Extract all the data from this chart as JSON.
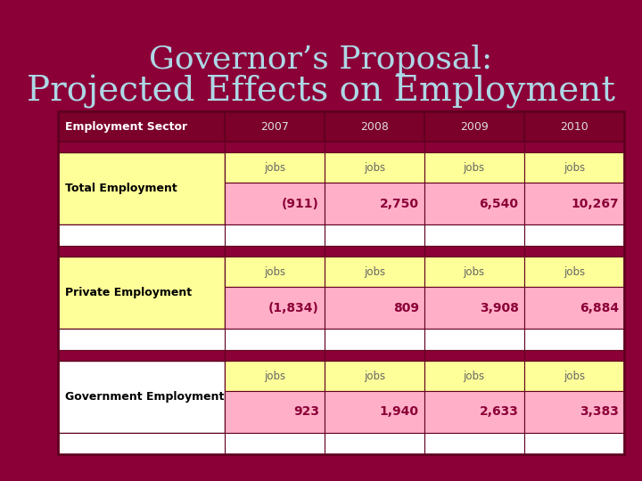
{
  "title_line1": "Governor’s Proposal:",
  "title_line2": "Projected Effects on Employment",
  "title_color": "#ADD8E6",
  "bg_color": "#8B0037",
  "header_row": [
    "Employment Sector",
    "2007",
    "2008",
    "2009",
    "2010"
  ],
  "header_bg": "#7B002A",
  "header_text_color": "#FFFFFF",
  "rows": [
    {
      "sector": "Total Employment",
      "jobs_row": [
        "jobs",
        "jobs",
        "jobs",
        "jobs"
      ],
      "values_row": [
        "(911)",
        "2,750",
        "6,540",
        "10,267"
      ],
      "sector_bg": "#FFFF99",
      "jobs_bg": "#FFFF99",
      "values_bg": "#FFB0C8",
      "spacer_bg": "#FFFFFF",
      "bottom_bg": "#FFFFFF"
    },
    {
      "sector": "Private Employment",
      "jobs_row": [
        "jobs",
        "jobs",
        "jobs",
        "jobs"
      ],
      "values_row": [
        "(1,834)",
        "809",
        "3,908",
        "6,884"
      ],
      "sector_bg": "#FFFF99",
      "jobs_bg": "#FFFF99",
      "values_bg": "#FFB0C8",
      "spacer_bg": "#FFFFFF",
      "bottom_bg": "#FFFFFF"
    },
    {
      "sector": "Government Employment",
      "jobs_row": [
        "jobs",
        "jobs",
        "jobs",
        "jobs"
      ],
      "values_row": [
        "923",
        "1,940",
        "2,633",
        "3,383"
      ],
      "sector_bg": "#FFFFFF",
      "jobs_bg": "#FFFF99",
      "values_bg": "#FFB0C8",
      "spacer_bg": "#FFFFFF",
      "bottom_bg": "#FFFFFF"
    }
  ],
  "border_color": "#800020",
  "value_text_color": "#8B0037",
  "jobs_text_color": "#666666",
  "sector_text_color": "#000000",
  "header_year_color": "#DDDDDD"
}
